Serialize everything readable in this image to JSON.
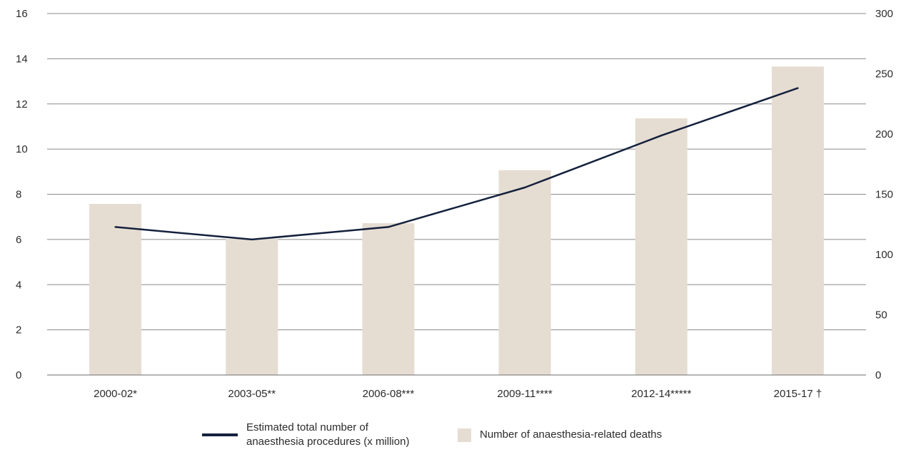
{
  "chart_data": {
    "type": "bar",
    "categories": [
      "2000-02*",
      "2003-05**",
      "2006-08***",
      "2009-11****",
      "2012-14*****",
      "2015-17 †"
    ],
    "series": [
      {
        "name": "Number of anaesthesia-related deaths",
        "type": "bar",
        "axis": "right",
        "values": [
          142,
          113,
          126,
          170,
          213,
          256
        ],
        "color": "#e6ddd2"
      },
      {
        "name": "Estimated total number of anaesthesia procedures (x million)",
        "type": "line",
        "axis": "left",
        "values": [
          6.55,
          6.0,
          6.55,
          8.3,
          10.6,
          12.7
        ],
        "color": "#14213d"
      }
    ],
    "y_left": {
      "ticks": [
        "0",
        "2",
        "4",
        "6",
        "8",
        "10",
        "12",
        "14",
        "16"
      ],
      "range": [
        0,
        16
      ]
    },
    "y_right": {
      "ticks": [
        "0",
        "50",
        "100",
        "150",
        "200",
        "250",
        "300"
      ],
      "range": [
        0,
        300
      ]
    },
    "grid": true,
    "legend_position": "bottom"
  },
  "legend": {
    "line_label_1": "Estimated total number of",
    "line_label_2": "anaesthesia procedures (x million)",
    "bar_label": "Number of anaesthesia-related deaths"
  }
}
